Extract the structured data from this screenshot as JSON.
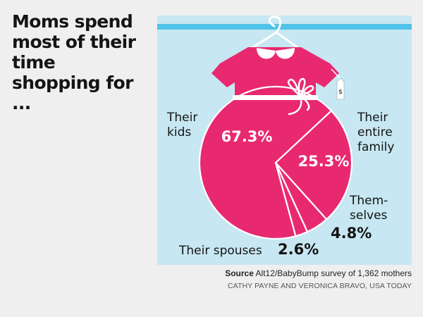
{
  "headline": "Moms spend most of their time shopping for ...",
  "colors": {
    "dress": "#e8296f",
    "background_panel": "#c7e7f2",
    "rail": "#4fc3ea",
    "divider": "#ffffff",
    "text": "#141414"
  },
  "chart_data": {
    "type": "pie",
    "title": "Moms spend most of their time shopping for ...",
    "categories": [
      "Their kids",
      "Their entire family",
      "Themselves",
      "Their spouses"
    ],
    "values": [
      67.3,
      25.3,
      4.8,
      2.6
    ],
    "value_labels": [
      "67.3%",
      "25.3%",
      "4.8%",
      "2.6%"
    ],
    "units": "percent of mothers"
  },
  "labels": {
    "kids": [
      "Their",
      "kids"
    ],
    "family": [
      "Their",
      "entire",
      "family"
    ],
    "themselves": [
      "Them-",
      "selves"
    ],
    "spouses": "Their spouses"
  },
  "price_tag_symbol": "$",
  "footer": {
    "source_label": "Source",
    "source_text": " Alt12/BabyBump survey of 1,362 mothers",
    "credit": "CATHY PAYNE AND VERONICA BRAVO, USA TODAY"
  }
}
